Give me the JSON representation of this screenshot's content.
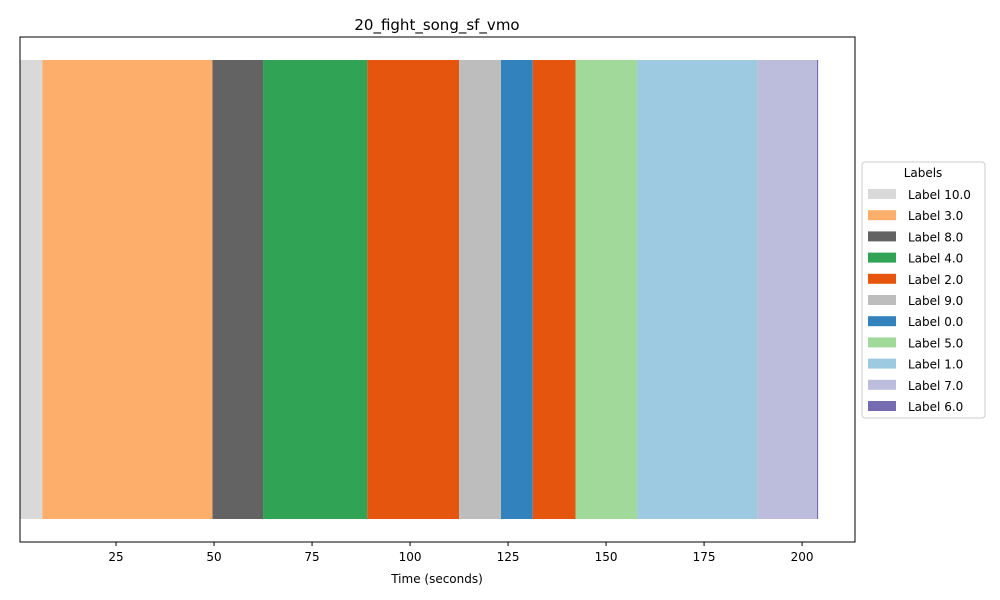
{
  "chart_data": {
    "type": "bar",
    "orientation": "horizontal-timeline",
    "title": "20_fight_song_sf_vmo",
    "xlabel": "Time (seconds)",
    "ylabel": "",
    "xlim": [
      0.5,
      213.5
    ],
    "xticks": [
      25,
      50,
      75,
      100,
      125,
      150,
      175,
      200
    ],
    "grid": false,
    "legend_title": "Labels",
    "legend_position": "center-right",
    "segments": [
      {
        "label": "Label 10.0",
        "start": 0.5,
        "end": 6.2,
        "color": "#d9d9d9"
      },
      {
        "label": "Label 3.0",
        "start": 6.2,
        "end": 49.6,
        "color": "#fdae6b"
      },
      {
        "label": "Label 8.0",
        "start": 49.6,
        "end": 62.5,
        "color": "#636363"
      },
      {
        "label": "Label 4.0",
        "start": 62.5,
        "end": 89.1,
        "color": "#31a354"
      },
      {
        "label": "Label 2.0",
        "start": 89.1,
        "end": 112.5,
        "color": "#e6550d"
      },
      {
        "label": "Label 9.0",
        "start": 112.5,
        "end": 123.2,
        "color": "#bdbdbd"
      },
      {
        "label": "Label 0.0",
        "start": 123.2,
        "end": 131.3,
        "color": "#3182bd"
      },
      {
        "label": "Label 2.0",
        "start": 131.3,
        "end": 142.2,
        "color": "#e6550d"
      },
      {
        "label": "Label 5.0",
        "start": 142.2,
        "end": 157.9,
        "color": "#a1d99b"
      },
      {
        "label": "Label 1.0",
        "start": 157.9,
        "end": 188.6,
        "color": "#9ecae1"
      },
      {
        "label": "Label 7.0",
        "start": 188.6,
        "end": 203.8,
        "color": "#bcbddc"
      },
      {
        "label": "Label 6.0",
        "start": 203.8,
        "end": 204.1,
        "color": "#756bb1"
      }
    ],
    "legend": [
      {
        "label": "Label 10.0",
        "color": "#d9d9d9"
      },
      {
        "label": "Label 3.0",
        "color": "#fdae6b"
      },
      {
        "label": "Label 8.0",
        "color": "#636363"
      },
      {
        "label": "Label 4.0",
        "color": "#31a354"
      },
      {
        "label": "Label 2.0",
        "color": "#e6550d"
      },
      {
        "label": "Label 9.0",
        "color": "#bdbdbd"
      },
      {
        "label": "Label 0.0",
        "color": "#3182bd"
      },
      {
        "label": "Label 5.0",
        "color": "#a1d99b"
      },
      {
        "label": "Label 1.0",
        "color": "#9ecae1"
      },
      {
        "label": "Label 7.0",
        "color": "#bcbddc"
      },
      {
        "label": "Label 6.0",
        "color": "#756bb1"
      }
    ]
  }
}
